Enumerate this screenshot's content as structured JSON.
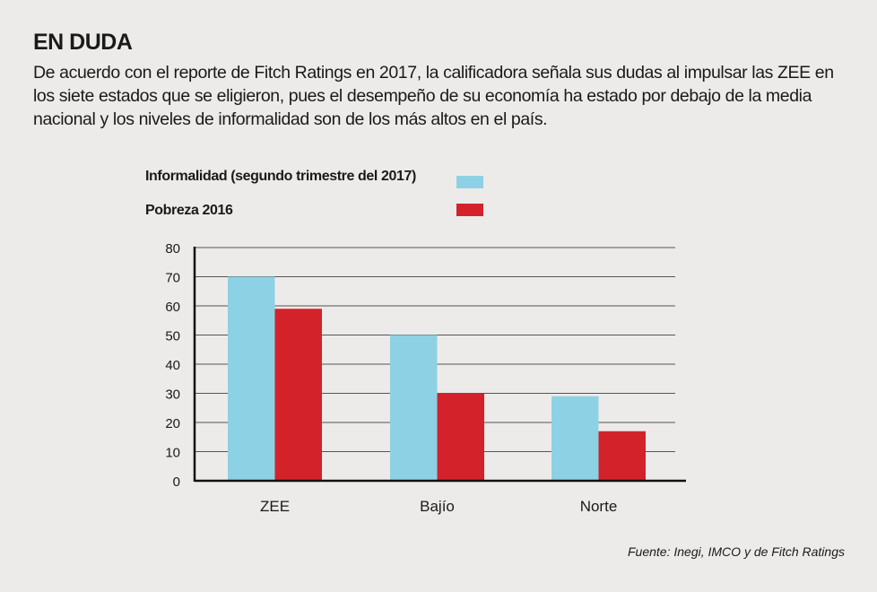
{
  "header": {
    "title": "EN DUDA",
    "description": "De acuerdo con el reporte de Fitch Ratings en 2017, la calificadora señala sus dudas al impulsar las ZEE en los siete estados que se eligieron, pues el desempeño de su economía ha estado por debajo de la media nacional y los niveles de informalidad son de los más altos en el país."
  },
  "source": "Fuente: Inegi, IMCO y de Fitch Ratings",
  "chart_data": {
    "type": "bar",
    "categories": [
      "ZEE",
      "Bajío",
      "Norte"
    ],
    "series": [
      {
        "name": "Informalidad (segundo trimestre del 2017)",
        "color": "#8dd1e4",
        "values": [
          70,
          50,
          29
        ]
      },
      {
        "name": "Pobreza 2016",
        "color": "#d3222a",
        "values": [
          59,
          30,
          17
        ]
      }
    ],
    "yticks": [
      "0",
      "10",
      "20",
      "30",
      "40",
      "50",
      "60",
      "70",
      "80"
    ],
    "ylim": [
      0,
      80
    ],
    "grid": true,
    "legend": "top-left"
  }
}
